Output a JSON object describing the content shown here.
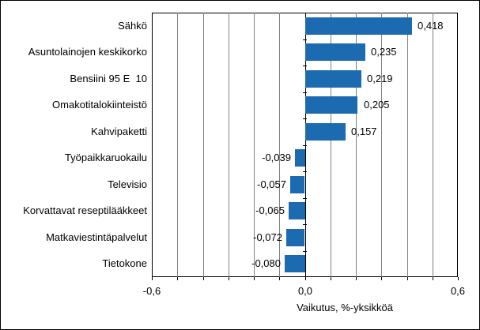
{
  "chart_data": {
    "type": "bar",
    "orientation": "horizontal",
    "title": "",
    "xlabel": "Vaikutus, %-yksikköä",
    "categories": [
      "Sähkö",
      "Asuntolainojen keskikorko",
      "Bensiini 95 E  10",
      "Omakotitalokiinteistö",
      "Kahvipaketti",
      "Työpaikkaruokailu",
      "Televisio",
      "Korvattavat reseptilääkkeet",
      "Matkaviestintäpalvelut",
      "Tietokone"
    ],
    "values": [
      0.418,
      0.235,
      0.219,
      0.205,
      0.157,
      -0.039,
      -0.057,
      -0.065,
      -0.072,
      -0.08
    ],
    "value_labels": [
      "0,418",
      "0,235",
      "0,219",
      "0,205",
      "0,157",
      "-0,039",
      "-0,057",
      "-0,065",
      "-0,072",
      "-0,080"
    ],
    "xlim": [
      -0.6,
      0.6
    ],
    "x_ticks": [
      {
        "value": -0.6,
        "label": "-0,6"
      },
      {
        "value": 0.0,
        "label": "0,0"
      },
      {
        "value": 0.6,
        "label": "0,6"
      }
    ],
    "gridline_step": 0.1,
    "grid": "vertical",
    "legend_position": "none",
    "colors": {
      "bar": "#1C6BB0",
      "gridline": "#808080",
      "axis": "#000000",
      "background": "#FFFFFF"
    }
  }
}
